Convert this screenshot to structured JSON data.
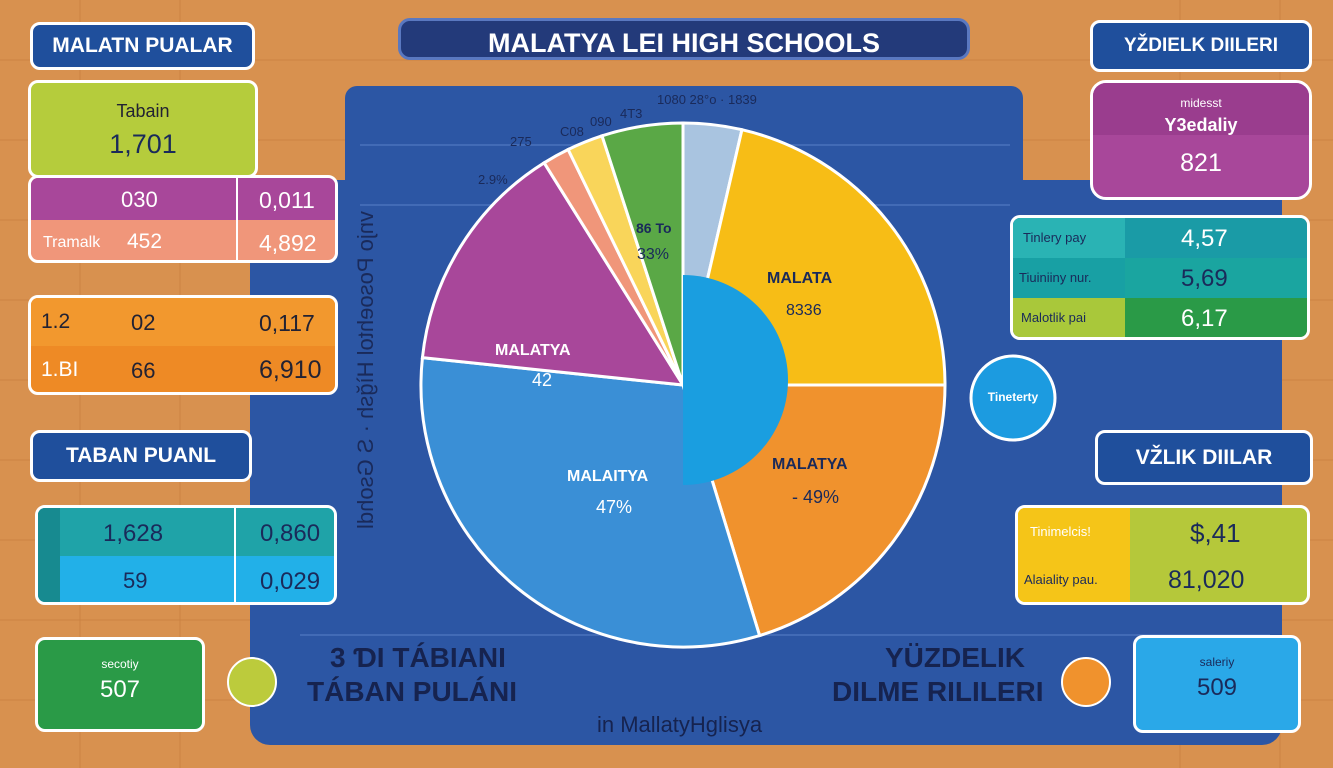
{
  "header": {
    "title": "MALATYA LEI HIGH SCHOOLS"
  },
  "left": {
    "tag1": "MALATN PUALAR",
    "box1": {
      "label": "Tabain",
      "value": "1,701"
    },
    "table1": {
      "rows": [
        [
          "030",
          "0,011"
        ],
        [
          "Tramalk",
          "452",
          "4,892"
        ]
      ]
    },
    "table2": {
      "rows": [
        [
          "1.2",
          "02",
          "0,117"
        ],
        [
          "1.BI",
          "66",
          "6,910"
        ]
      ]
    },
    "tag2": "TABAN PUANL",
    "table3": {
      "rows": [
        [
          "1,628",
          "0,860"
        ],
        [
          "59",
          "0,029"
        ]
      ]
    },
    "box2": {
      "label": "secotiy",
      "value": "507"
    }
  },
  "center": {
    "vertical_text": "vnjo  Posoehtol Hìğsh · S Gsohdl",
    "top_labels": [
      "1080 28°o · 1839",
      "4T3",
      "090",
      "C08",
      "275",
      "2.9%"
    ],
    "slices": [
      {
        "label": "86 To",
        "value": "33%"
      },
      {
        "label": "MALATA",
        "value": "8336"
      },
      {
        "label": "MALATYA",
        "value": "42"
      },
      {
        "label": "MALAITYA",
        "value": "47%"
      },
      {
        "label": "MALATYA",
        "value": "- 49%"
      }
    ],
    "left_caption": [
      "3 ƊI TÁBIANI",
      "TÁBAN PULÁNI"
    ],
    "right_caption": [
      "YÜZDELIK",
      "DILME RILILERI"
    ],
    "footer": "in MallatyHglisya"
  },
  "right": {
    "tag1": "YŽDIELK DIILERI",
    "box1": {
      "small": "midesst",
      "label": "Y3edaliy",
      "value": "821"
    },
    "table1": {
      "rows": [
        [
          "Tinlery pay",
          "4,57"
        ],
        [
          "Tiuiniiny nur.",
          "5,69"
        ],
        [
          "Malotlik pai",
          "6,17"
        ]
      ]
    },
    "badge": "Tineterty",
    "tag2": "VŽLIK DIILAR",
    "table2": {
      "rows": [
        [
          "Tinimelcis!",
          "$,41"
        ],
        [
          "Alaiality pau.",
          "81,020"
        ]
      ]
    },
    "box2": {
      "label": "saleriy",
      "value": "509"
    }
  }
}
